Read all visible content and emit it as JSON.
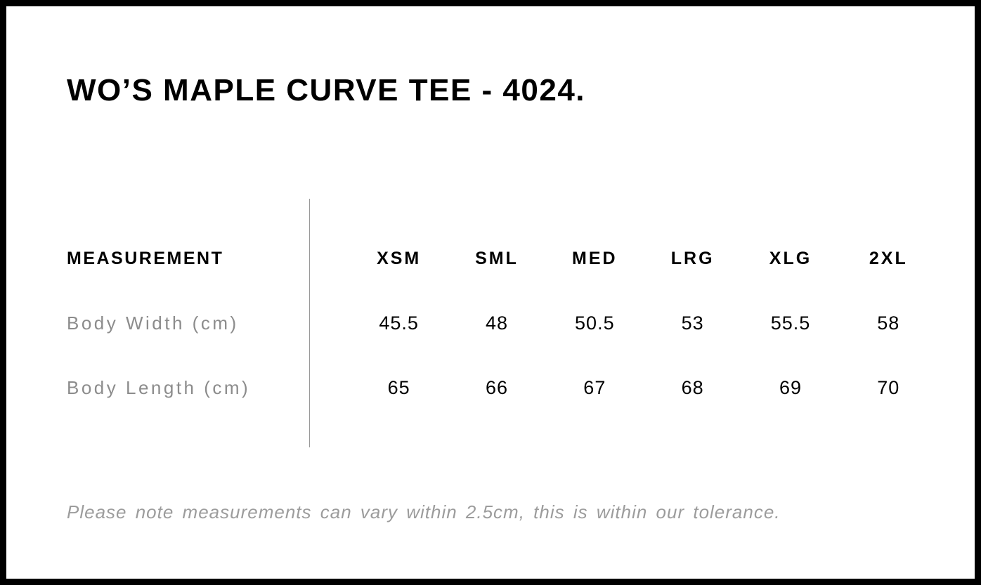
{
  "page": {
    "title": "WO’S MAPLE CURVE TEE - 4024.",
    "note": "Please note measurements can vary within 2.5cm, this is within our tolerance."
  },
  "size_chart": {
    "header_label": "MEASUREMENT",
    "sizes": [
      "XSM",
      "SML",
      "MED",
      "LRG",
      "XLG",
      "2XL"
    ],
    "rows": [
      {
        "label": "Body Width (cm)",
        "values": [
          "45.5",
          "48",
          "50.5",
          "53",
          "55.5",
          "58"
        ]
      },
      {
        "label": "Body Length (cm)",
        "values": [
          "65",
          "66",
          "67",
          "68",
          "69",
          "70"
        ]
      }
    ]
  },
  "chart_data": {
    "type": "table",
    "title": "WO’S MAPLE CURVE TEE - 4024.",
    "columns": [
      "MEASUREMENT",
      "XSM",
      "SML",
      "MED",
      "LRG",
      "XLG",
      "2XL"
    ],
    "rows": [
      [
        "Body Width (cm)",
        45.5,
        48,
        50.5,
        53,
        55.5,
        58
      ],
      [
        "Body Length (cm)",
        65,
        66,
        67,
        68,
        69,
        70
      ]
    ],
    "footnote": "Please note measurements can vary within 2.5cm, this is within our tolerance."
  },
  "colors": {
    "border": "#000000",
    "text_primary": "#000000",
    "row_label_gray": "#8c8c8c",
    "note_gray": "#9c9c9c",
    "divider_gray": "#999999",
    "background": "#ffffff"
  }
}
